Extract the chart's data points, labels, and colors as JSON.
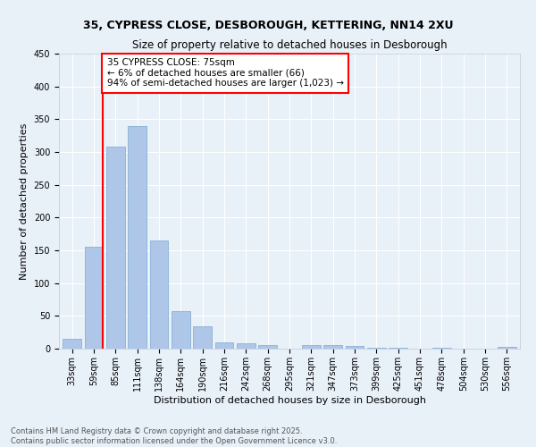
{
  "title_line1": "35, CYPRESS CLOSE, DESBOROUGH, KETTERING, NN14 2XU",
  "title_line2": "Size of property relative to detached houses in Desborough",
  "xlabel": "Distribution of detached houses by size in Desborough",
  "ylabel": "Number of detached properties",
  "categories": [
    "33sqm",
    "59sqm",
    "85sqm",
    "111sqm",
    "138sqm",
    "164sqm",
    "190sqm",
    "216sqm",
    "242sqm",
    "268sqm",
    "295sqm",
    "321sqm",
    "347sqm",
    "373sqm",
    "399sqm",
    "425sqm",
    "451sqm",
    "478sqm",
    "504sqm",
    "530sqm",
    "556sqm"
  ],
  "values": [
    15,
    155,
    308,
    340,
    165,
    57,
    34,
    10,
    8,
    5,
    0,
    5,
    5,
    4,
    2,
    1,
    0,
    1,
    0,
    0,
    3
  ],
  "bar_color": "#aec6e8",
  "bar_edge_color": "#7ca8d4",
  "vline_color": "red",
  "annotation_text": "35 CYPRESS CLOSE: 75sqm\n← 6% of detached houses are smaller (66)\n94% of semi-detached houses are larger (1,023) →",
  "annotation_box_color": "white",
  "annotation_box_edge_color": "red",
  "ylim": [
    0,
    450
  ],
  "yticks": [
    0,
    50,
    100,
    150,
    200,
    250,
    300,
    350,
    400,
    450
  ],
  "bg_color": "#e8f0f8",
  "plot_bg_color": "#e8f0f8",
  "footer_line1": "Contains HM Land Registry data © Crown copyright and database right 2025.",
  "footer_line2": "Contains public sector information licensed under the Open Government Licence v3.0.",
  "title_fontsize": 9,
  "subtitle_fontsize": 8.5,
  "axis_label_fontsize": 8,
  "tick_fontsize": 7,
  "footer_fontsize": 6,
  "annotation_fontsize": 7.5
}
